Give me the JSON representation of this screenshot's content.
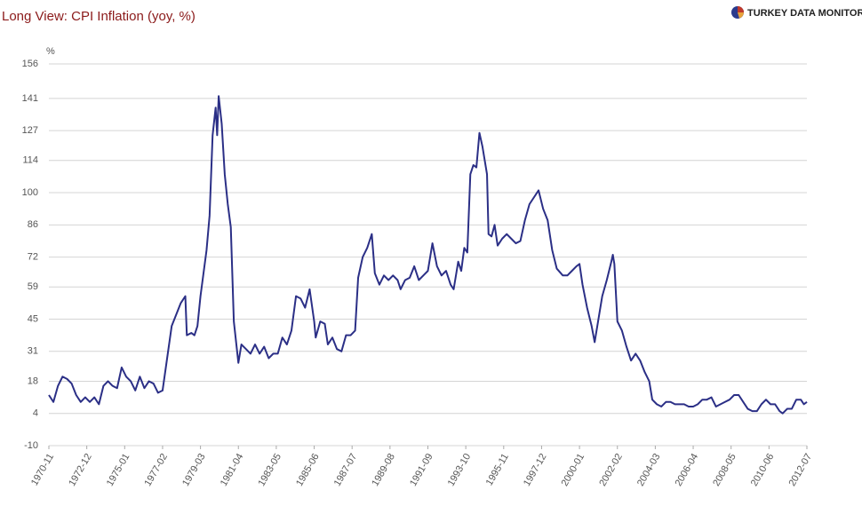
{
  "chart_data": {
    "type": "line",
    "title": "Long View: CPI Inflation (yoy, %)",
    "brand": "TURKEY DATA MONITOR",
    "y_unit": "%",
    "color": "#2b2f86",
    "grid": true,
    "xlim": [
      "1970-11",
      "2012-07"
    ],
    "xticks": [
      "1970-11",
      "1972-12",
      "1975-01",
      "1977-02",
      "1979-03",
      "1981-04",
      "1983-05",
      "1985-06",
      "1987-07",
      "1989-08",
      "1991-09",
      "1993-10",
      "1995-11",
      "1997-12",
      "2000-01",
      "2002-02",
      "2004-03",
      "2006-04",
      "2008-05",
      "2010-06",
      "2012-07"
    ],
    "ylim": [
      -10,
      156
    ],
    "yticks": [
      -10,
      4,
      18,
      31,
      45,
      59,
      72,
      86,
      100,
      114,
      127,
      141,
      156
    ],
    "x": [
      "1970-11",
      "1971-02",
      "1971-05",
      "1971-08",
      "1971-11",
      "1972-02",
      "1972-05",
      "1972-08",
      "1972-11",
      "1973-02",
      "1973-05",
      "1973-08",
      "1973-11",
      "1974-02",
      "1974-05",
      "1974-08",
      "1974-11",
      "1975-02",
      "1975-05",
      "1975-08",
      "1975-11",
      "1976-02",
      "1976-05",
      "1976-08",
      "1976-11",
      "1977-02",
      "1977-05",
      "1977-08",
      "1977-11",
      "1978-02",
      "1978-05",
      "1978-06",
      "1978-09",
      "1978-11",
      "1979-01",
      "1979-03",
      "1979-05",
      "1979-07",
      "1979-09",
      "1979-11",
      "1980-01",
      "1980-02",
      "1980-03",
      "1980-05",
      "1980-07",
      "1980-09",
      "1980-11",
      "1981-01",
      "1981-04",
      "1981-06",
      "1981-09",
      "1981-12",
      "1982-03",
      "1982-06",
      "1982-09",
      "1982-12",
      "1983-03",
      "1983-06",
      "1983-09",
      "1983-12",
      "1984-03",
      "1984-06",
      "1984-09",
      "1984-12",
      "1985-03",
      "1985-06",
      "1985-07",
      "1985-10",
      "1986-01",
      "1986-03",
      "1986-06",
      "1986-09",
      "1986-12",
      "1987-03",
      "1987-06",
      "1987-09",
      "1987-11",
      "1988-02",
      "1988-05",
      "1988-08",
      "1988-10",
      "1989-01",
      "1989-04",
      "1989-07",
      "1989-10",
      "1990-01",
      "1990-03",
      "1990-06",
      "1990-09",
      "1990-12",
      "1991-03",
      "1991-06",
      "1991-09",
      "1991-12",
      "1992-03",
      "1992-06",
      "1992-09",
      "1992-12",
      "1993-02",
      "1993-05",
      "1993-07",
      "1993-09",
      "1993-11",
      "1994-01",
      "1994-03",
      "1994-05",
      "1994-07",
      "1994-09",
      "1994-12",
      "1995-01",
      "1995-03",
      "1995-05",
      "1995-07",
      "1995-10",
      "1996-01",
      "1996-04",
      "1996-07",
      "1996-10",
      "1997-01",
      "1997-04",
      "1997-10",
      "1998-01",
      "1998-04",
      "1998-07",
      "1998-10",
      "1999-02",
      "1999-05",
      "1999-08",
      "1999-11",
      "2000-01",
      "2000-03",
      "2000-06",
      "2000-09",
      "2000-11",
      "2001-04",
      "2001-07",
      "2001-10",
      "2001-11",
      "2001-12",
      "2002-02",
      "2002-05",
      "2002-08",
      "2002-11",
      "2003-02",
      "2003-05",
      "2003-08",
      "2003-11",
      "2004-01",
      "2004-04",
      "2004-07",
      "2004-10",
      "2005-01",
      "2005-04",
      "2005-07",
      "2005-10",
      "2006-01",
      "2006-04",
      "2006-07",
      "2006-10",
      "2007-01",
      "2007-04",
      "2007-07",
      "2007-10",
      "2008-01",
      "2008-04",
      "2008-07",
      "2008-10",
      "2009-01",
      "2009-04",
      "2009-07",
      "2009-10",
      "2010-01",
      "2010-04",
      "2010-07",
      "2010-10",
      "2011-01",
      "2011-03",
      "2011-06",
      "2011-09",
      "2011-12",
      "2012-03",
      "2012-05",
      "2012-07"
    ],
    "values": [
      12,
      9,
      16,
      20,
      19,
      17,
      12,
      9,
      11,
      9,
      11,
      8,
      16,
      18,
      16,
      15,
      24,
      20,
      18,
      14,
      20,
      15,
      18,
      17,
      13,
      14,
      28,
      42,
      47,
      52,
      55,
      38,
      39,
      38,
      42,
      55,
      65,
      75,
      90,
      125,
      137,
      125,
      142,
      130,
      108,
      95,
      85,
      44,
      26,
      34,
      32,
      30,
      34,
      30,
      33,
      28,
      30,
      30,
      37,
      34,
      40,
      55,
      54,
      50,
      58,
      44,
      37,
      44,
      43,
      34,
      37,
      32,
      31,
      38,
      38,
      40,
      63,
      72,
      76,
      82,
      65,
      60,
      64,
      62,
      64,
      62,
      58,
      62,
      63,
      68,
      62,
      64,
      66,
      78,
      68,
      64,
      66,
      60,
      58,
      70,
      66,
      76,
      74,
      108,
      112,
      111,
      126,
      120,
      108,
      82,
      81,
      86,
      77,
      80,
      82,
      80,
      78,
      79,
      88,
      95,
      101,
      93,
      88,
      75,
      67,
      64,
      64,
      66,
      68,
      69,
      60,
      50,
      42,
      35,
      55,
      62,
      70,
      73,
      69,
      44,
      40,
      33,
      27,
      30,
      27,
      22,
      18,
      10,
      8,
      7,
      9,
      9,
      8,
      8,
      8,
      7,
      7,
      8,
      10,
      10,
      11,
      7,
      8,
      9,
      10,
      12,
      12,
      9,
      6,
      5,
      5,
      8,
      10,
      8,
      8,
      5,
      4,
      6,
      6,
      10,
      10,
      8,
      9
    ]
  }
}
